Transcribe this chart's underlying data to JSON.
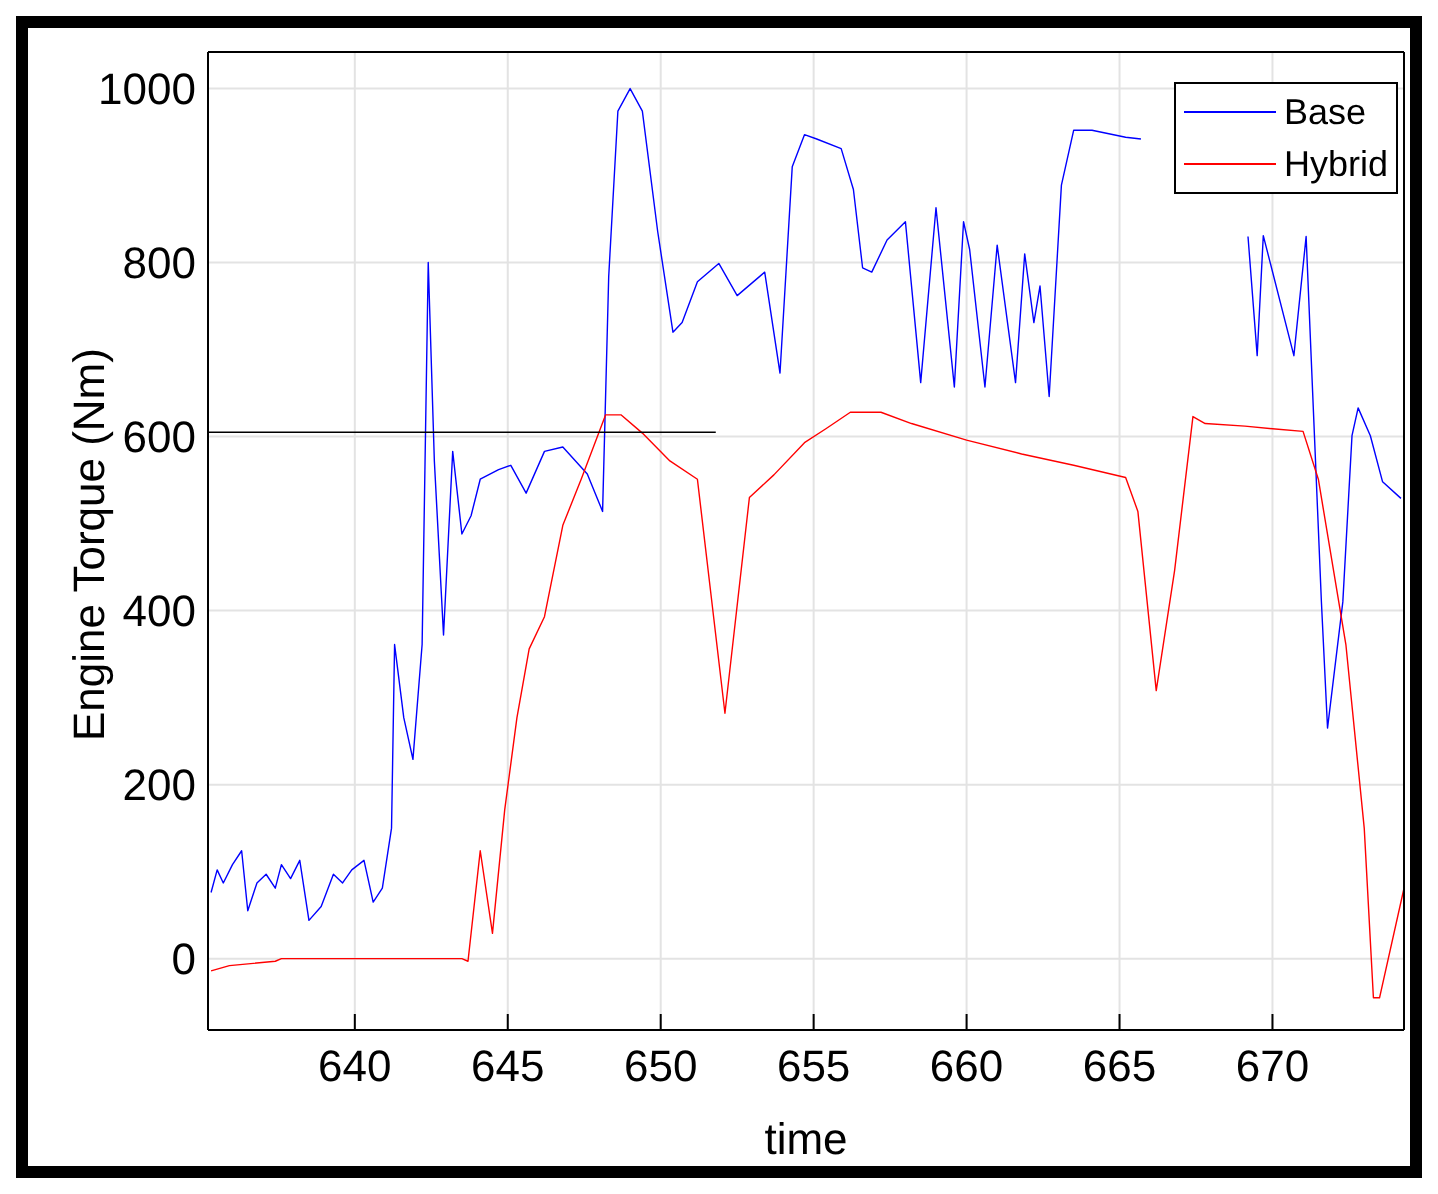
{
  "chart_data": {
    "type": "line",
    "xlabel": "time",
    "ylabel": "Engine Torque (Nm)",
    "xlim": [
      635.2,
      674.3
    ],
    "ylim": [
      -82,
      1042
    ],
    "xticks": [
      640,
      645,
      650,
      655,
      660,
      665,
      670
    ],
    "yticks": [
      0,
      200,
      400,
      600,
      800,
      1000
    ],
    "grid": true,
    "legend": "top right",
    "series": [
      {
        "name": "Base",
        "color": "#0000ff",
        "x": [
          635.3,
          635.5,
          635.7,
          636.0,
          636.3,
          636.5,
          636.8,
          637.1,
          637.4,
          637.6,
          637.9,
          638.2,
          638.5,
          638.9,
          639.3,
          639.6,
          639.9,
          640.3,
          640.6,
          640.9,
          641.2,
          641.3,
          641.6,
          641.9,
          642.2,
          642.4,
          642.6,
          642.9,
          643.2,
          643.5,
          643.8,
          644.1,
          644.7,
          645.1,
          645.6,
          646.2,
          646.8,
          647.6,
          648.1,
          648.3,
          648.6,
          649.0,
          649.4,
          649.9,
          650.4,
          650.7,
          651.2,
          651.9,
          652.5,
          653.4,
          653.9,
          654.3,
          654.7,
          655.1,
          655.9,
          656.3,
          656.6,
          656.9,
          657.4,
          658.0,
          658.5,
          659.0,
          659.6,
          659.9,
          660.1,
          660.6,
          661.0,
          661.6,
          661.9,
          662.2,
          662.4,
          662.7,
          663.1,
          663.5,
          664.1,
          665.2,
          665.7,
          667.5,
          669.2,
          669.5,
          669.7,
          670.7,
          671.1,
          671.6,
          671.8,
          672.3,
          672.6,
          672.8,
          673.2,
          673.6,
          674.2
        ],
        "values": [
          76,
          102,
          87,
          108,
          124,
          55,
          87,
          97,
          81,
          108,
          92,
          113,
          44,
          60,
          97,
          87,
          102,
          113,
          65,
          81,
          150,
          361,
          277,
          229,
          361,
          800,
          572,
          372,
          583,
          488,
          509,
          551,
          562,
          567,
          535,
          583,
          588,
          557,
          514,
          784,
          974,
          1000,
          974,
          836,
          720,
          731,
          778,
          799,
          762,
          789,
          673,
          910,
          947,
          942,
          931,
          884,
          794,
          789,
          826,
          847,
          662,
          863,
          657,
          847,
          815,
          657,
          820,
          662,
          810,
          731,
          773,
          646,
          889,
          952,
          952,
          944,
          942,
          null,
          830,
          693,
          831,
          693,
          830,
          410,
          265,
          410,
          601,
          633,
          601,
          548,
          529
        ]
      },
      {
        "name": "Hybrid",
        "color": "#ff0000",
        "x": [
          635.3,
          635.9,
          637.4,
          637.6,
          643.5,
          643.7,
          644.1,
          644.5,
          644.9,
          645.3,
          645.7,
          646.2,
          646.8,
          647.4,
          648.2,
          648.7,
          649.4,
          650.3,
          651.2,
          652.1,
          652.9,
          653.7,
          654.7,
          655.4,
          656.2,
          657.2,
          658.2,
          660.0,
          661.8,
          663.5,
          665.2,
          665.6,
          666.2,
          666.8,
          667.4,
          667.8,
          669.1,
          670.0,
          671.0,
          671.5,
          672.4,
          673.0,
          673.3,
          673.5,
          674.3
        ],
        "values": [
          -14,
          -8,
          -3,
          0,
          0,
          -3,
          124,
          29,
          171,
          277,
          356,
          393,
          498,
          551,
          625,
          625,
          604,
          572,
          551,
          282,
          530,
          556,
          593,
          609,
          628,
          628,
          615,
          596,
          580,
          567,
          553,
          514,
          308,
          446,
          623,
          615,
          612,
          609,
          606,
          551,
          361,
          150,
          -45,
          -45,
          81
        ]
      },
      {
        "type": "line",
        "color": "#000000",
        "x": [
          635.2,
          651.8
        ],
        "values": [
          605,
          605
        ]
      }
    ]
  }
}
